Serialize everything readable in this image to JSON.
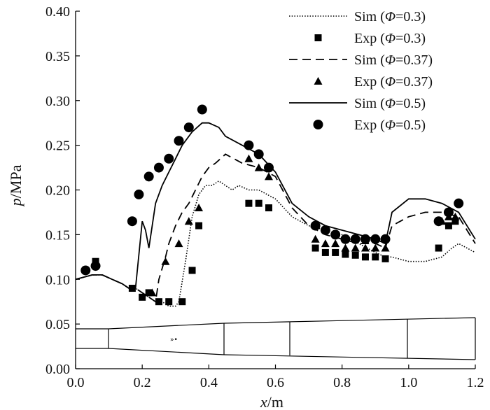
{
  "chart_data": {
    "type": "line",
    "xlabel": {
      "var": "x",
      "unit": "/m"
    },
    "ylabel": {
      "var": "p",
      "unit": "/MPa"
    },
    "xlim": [
      0.0,
      1.2
    ],
    "ylim": [
      0.0,
      0.4
    ],
    "x_ticks": [
      "0.0",
      "0.2",
      "0.4",
      "0.6",
      "0.8",
      "1.0",
      "1.2"
    ],
    "y_ticks": [
      "0.00",
      "0.05",
      "0.10",
      "0.15",
      "0.20",
      "0.25",
      "0.30",
      "0.35",
      "0.40"
    ],
    "grid": false,
    "legend_position": "top-right",
    "legend": [
      {
        "prefix": "Sim (",
        "phi": "Φ",
        "suffix": "=0.3)",
        "style": "dotted-line"
      },
      {
        "prefix": "Exp (",
        "phi": "Φ",
        "suffix": "=0.3)",
        "style": "square"
      },
      {
        "prefix": "Sim (",
        "phi": "Φ",
        "suffix": "=0.37)",
        "style": "dashed-line"
      },
      {
        "prefix": "Exp (",
        "phi": "Φ",
        "suffix": "=0.37)",
        "style": "triangle"
      },
      {
        "prefix": "Sim (",
        "phi": "Φ",
        "suffix": "=0.5)",
        "style": "solid-line"
      },
      {
        "prefix": "Exp (",
        "phi": "Φ",
        "suffix": "=0.5)",
        "style": "circle"
      }
    ],
    "series": [
      {
        "style": "dotted",
        "x": [
          0.0,
          0.05,
          0.08,
          0.11,
          0.14,
          0.16,
          0.18,
          0.2,
          0.22,
          0.24,
          0.26,
          0.28,
          0.3,
          0.31,
          0.33,
          0.35,
          0.37,
          0.39,
          0.41,
          0.43,
          0.45,
          0.47,
          0.49,
          0.52,
          0.55,
          0.6,
          0.65,
          0.7,
          0.75,
          0.8,
          0.85,
          0.9,
          0.93,
          0.95,
          1.0,
          1.05,
          1.1,
          1.13,
          1.15,
          1.2
        ],
        "y": [
          0.1,
          0.105,
          0.105,
          0.1,
          0.095,
          0.09,
          0.09,
          0.085,
          0.08,
          0.075,
          0.075,
          0.07,
          0.07,
          0.075,
          0.12,
          0.17,
          0.195,
          0.205,
          0.205,
          0.21,
          0.205,
          0.2,
          0.205,
          0.2,
          0.2,
          0.19,
          0.17,
          0.16,
          0.155,
          0.15,
          0.14,
          0.13,
          0.125,
          0.125,
          0.12,
          0.12,
          0.125,
          0.135,
          0.14,
          0.13
        ]
      },
      {
        "style": "dashed",
        "x": [
          0.0,
          0.05,
          0.08,
          0.11,
          0.14,
          0.16,
          0.18,
          0.2,
          0.22,
          0.24,
          0.25,
          0.27,
          0.28,
          0.3,
          0.32,
          0.34,
          0.36,
          0.38,
          0.4,
          0.42,
          0.45,
          0.5,
          0.55,
          0.6,
          0.65,
          0.7,
          0.75,
          0.8,
          0.85,
          0.9,
          0.93,
          0.95,
          1.0,
          1.05,
          1.1,
          1.15,
          1.2
        ],
        "y": [
          0.1,
          0.105,
          0.105,
          0.1,
          0.095,
          0.09,
          0.09,
          0.085,
          0.08,
          0.075,
          0.1,
          0.125,
          0.14,
          0.16,
          0.175,
          0.185,
          0.2,
          0.215,
          0.225,
          0.23,
          0.24,
          0.23,
          0.225,
          0.215,
          0.18,
          0.16,
          0.15,
          0.145,
          0.14,
          0.14,
          0.135,
          0.16,
          0.17,
          0.175,
          0.175,
          0.17,
          0.14
        ]
      },
      {
        "style": "solid",
        "x": [
          0.0,
          0.05,
          0.08,
          0.11,
          0.14,
          0.16,
          0.18,
          0.2,
          0.21,
          0.22,
          0.24,
          0.26,
          0.28,
          0.3,
          0.32,
          0.35,
          0.38,
          0.4,
          0.43,
          0.45,
          0.5,
          0.55,
          0.6,
          0.65,
          0.7,
          0.75,
          0.8,
          0.85,
          0.9,
          0.93,
          0.95,
          1.0,
          1.05,
          1.1,
          1.15,
          1.2
        ],
        "y": [
          0.1,
          0.105,
          0.105,
          0.1,
          0.095,
          0.09,
          0.09,
          0.165,
          0.155,
          0.135,
          0.185,
          0.205,
          0.22,
          0.235,
          0.25,
          0.265,
          0.275,
          0.275,
          0.27,
          0.26,
          0.25,
          0.24,
          0.22,
          0.185,
          0.17,
          0.16,
          0.155,
          0.15,
          0.145,
          0.14,
          0.175,
          0.19,
          0.19,
          0.185,
          0.175,
          0.145
        ]
      }
    ],
    "exp_points": [
      {
        "marker": "square",
        "x": [
          0.03,
          0.06,
          0.17,
          0.2,
          0.22,
          0.25,
          0.28,
          0.32,
          0.35,
          0.37,
          0.52,
          0.55,
          0.58,
          0.72,
          0.75,
          0.78,
          0.81,
          0.84,
          0.87,
          0.9,
          0.93,
          1.09,
          1.12,
          1.14
        ],
        "y": [
          0.11,
          0.12,
          0.09,
          0.08,
          0.085,
          0.075,
          0.075,
          0.075,
          0.11,
          0.16,
          0.185,
          0.185,
          0.18,
          0.135,
          0.13,
          0.13,
          0.128,
          0.127,
          0.125,
          0.125,
          0.123,
          0.135,
          0.16,
          0.165
        ]
      },
      {
        "marker": "triangle",
        "x": [
          0.23,
          0.27,
          0.31,
          0.34,
          0.37,
          0.52,
          0.55,
          0.58,
          0.72,
          0.75,
          0.78,
          0.81,
          0.84,
          0.87,
          0.9,
          0.93,
          1.1,
          1.12,
          1.14
        ],
        "y": [
          0.085,
          0.12,
          0.14,
          0.165,
          0.18,
          0.235,
          0.225,
          0.215,
          0.145,
          0.14,
          0.14,
          0.135,
          0.135,
          0.135,
          0.135,
          0.135,
          0.165,
          0.17,
          0.17
        ]
      },
      {
        "marker": "circle",
        "x": [
          0.03,
          0.06,
          0.17,
          0.19,
          0.22,
          0.25,
          0.28,
          0.31,
          0.34,
          0.38,
          0.52,
          0.55,
          0.58,
          0.72,
          0.75,
          0.78,
          0.81,
          0.84,
          0.87,
          0.9,
          0.93,
          1.09,
          1.12,
          1.15
        ],
        "y": [
          0.11,
          0.115,
          0.165,
          0.195,
          0.215,
          0.225,
          0.235,
          0.255,
          0.27,
          0.29,
          0.25,
          0.24,
          0.225,
          0.16,
          0.155,
          0.15,
          0.145,
          0.145,
          0.145,
          0.145,
          0.145,
          0.165,
          0.175,
          0.185
        ]
      }
    ]
  }
}
